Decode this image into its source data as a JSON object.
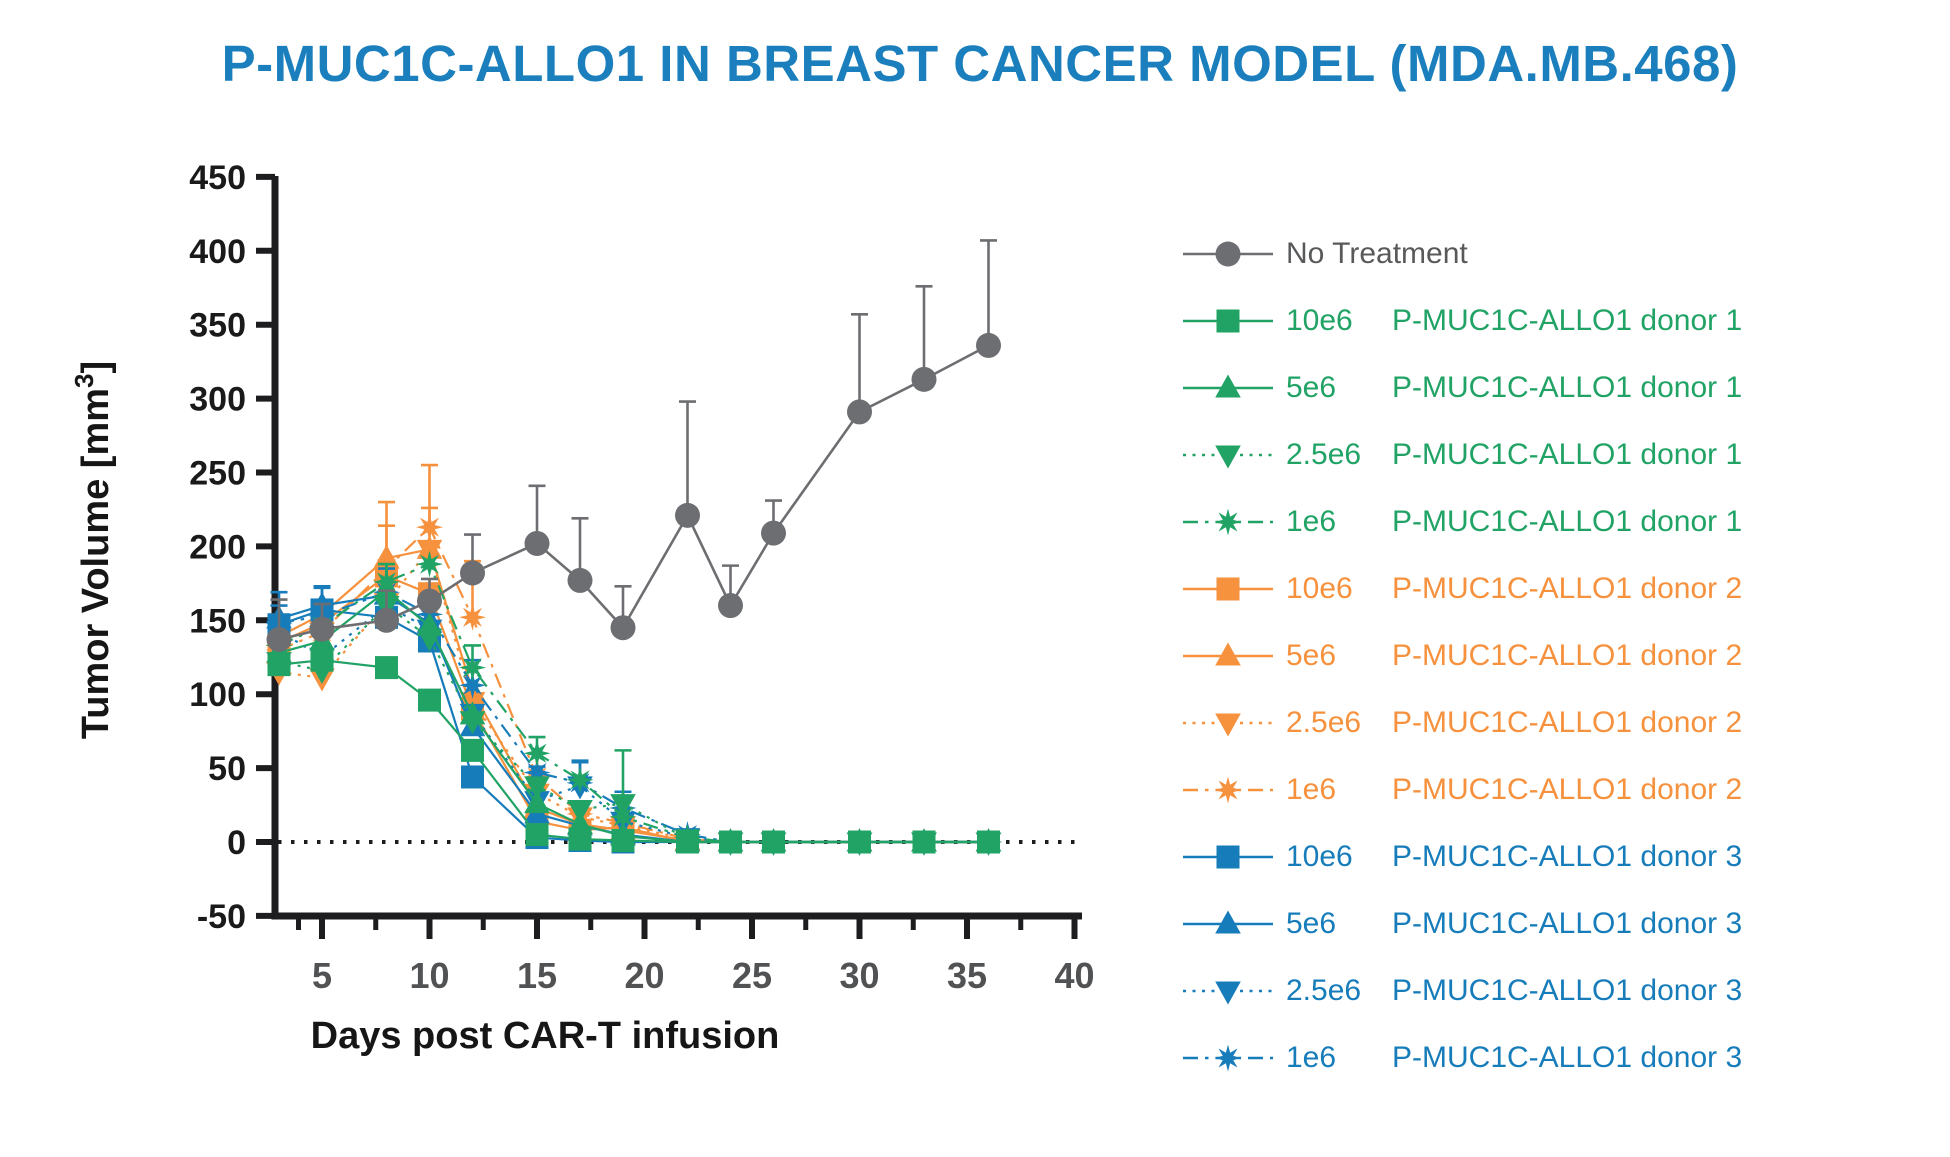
{
  "title": {
    "text": "P-MUC1C-ALLO1 IN BREAST CANCER MODEL (MDA.MB.468)",
    "color": "#1A7FBC"
  },
  "chart_data": {
    "type": "line",
    "x": [
      3,
      5,
      8,
      10,
      12,
      15,
      17,
      19,
      22,
      24,
      26,
      30,
      33,
      36
    ],
    "xlabel": "Days post CAR-T infusion",
    "ylabel": "Tumor Volume [mm³]",
    "ylabel_base": "Tumor Volume [mm",
    "ylabel_sup": "3",
    "ylabel_close": "]",
    "x_ticks": [
      5,
      10,
      15,
      20,
      25,
      30,
      35,
      40
    ],
    "x_minor_ticks": [
      7.5,
      12.5,
      17.5,
      22.5,
      27.5,
      32.5,
      37.5
    ],
    "y_ticks": [
      450,
      400,
      350,
      300,
      250,
      200,
      150,
      100,
      50,
      0,
      -50
    ],
    "xlim": [
      2.8,
      40.4
    ],
    "ylim": [
      -50,
      450
    ],
    "grid": false,
    "baseline": {
      "y": 0,
      "style": "dotted",
      "color": "#1D1D1F"
    },
    "legend_position": "right",
    "axis_color": "#1D1D1F",
    "x_tick_label_color": "#515254",
    "y_tick_label_color": "#1A1A1A",
    "series": [
      {
        "id": "no-treatment",
        "dose": "No Treatment",
        "product": "",
        "color": "#6D6E71",
        "text_color": "#58595B",
        "marker": "circle",
        "line": "solid",
        "values": [
          137,
          144,
          150,
          163,
          182,
          202,
          177,
          145,
          221,
          160,
          209,
          291,
          313,
          336
        ],
        "err_up": [
          27,
          17,
          20,
          15,
          26,
          39,
          42,
          28,
          77,
          27,
          22,
          66,
          63,
          71
        ]
      },
      {
        "id": "10e6-donor1",
        "dose": "10e6",
        "product": "P-MUC1C-ALLO1 donor 1",
        "color": "#21A366",
        "marker": "square",
        "line": "solid",
        "values": [
          120,
          123,
          118,
          96,
          62,
          5,
          2,
          1,
          0,
          0,
          0,
          0,
          0,
          0
        ],
        "err_up": [
          0,
          0,
          0,
          0,
          0,
          0,
          0,
          0,
          0,
          0,
          0,
          0,
          0,
          0
        ]
      },
      {
        "id": "5e6-donor1",
        "dose": "5e6",
        "product": "P-MUC1C-ALLO1 donor 1",
        "color": "#21A366",
        "marker": "triangle-up",
        "line": "solid",
        "values": [
          128,
          136,
          170,
          146,
          86,
          26,
          12,
          4,
          0,
          0,
          0,
          0,
          0,
          0
        ],
        "err_up": [
          14,
          10,
          18,
          0,
          0,
          9,
          0,
          0,
          0,
          0,
          0,
          0,
          0,
          0
        ]
      },
      {
        "id": "2.5e6-donor1",
        "dose": "2.5e6",
        "product": "P-MUC1C-ALLO1 donor 1",
        "color": "#21A366",
        "marker": "triangle-down",
        "line": "dotted",
        "values": [
          122,
          116,
          160,
          138,
          82,
          38,
          22,
          26,
          2,
          0,
          0,
          0,
          0,
          0
        ],
        "err_up": [
          0,
          0,
          0,
          0,
          0,
          0,
          0,
          36,
          0,
          0,
          0,
          0,
          0,
          0
        ]
      },
      {
        "id": "1e6-donor1",
        "dose": "1e6",
        "product": "P-MUC1C-ALLO1 donor 1",
        "color": "#21A366",
        "marker": "star",
        "line": "dashdot",
        "values": [
          133,
          146,
          176,
          188,
          118,
          60,
          42,
          17,
          3,
          0,
          0,
          0,
          0,
          0
        ],
        "err_up": [
          0,
          0,
          12,
          0,
          15,
          11,
          0,
          0,
          0,
          0,
          0,
          0,
          0,
          0
        ]
      },
      {
        "id": "10e6-donor2",
        "dose": "10e6",
        "product": "P-MUC1C-ALLO1 donor 2",
        "color": "#F6913E",
        "marker": "square",
        "line": "solid",
        "values": [
          135,
          148,
          180,
          168,
          90,
          14,
          8,
          10,
          0,
          0,
          0,
          0,
          0,
          0
        ],
        "err_up": [
          10,
          9,
          34,
          0,
          0,
          0,
          0,
          0,
          0,
          0,
          0,
          0,
          0,
          0
        ]
      },
      {
        "id": "5e6-donor2",
        "dose": "5e6",
        "product": "P-MUC1C-ALLO1 donor 2",
        "color": "#F6913E",
        "marker": "triangle-up",
        "line": "solid",
        "values": [
          139,
          154,
          192,
          198,
          102,
          23,
          12,
          8,
          1,
          0,
          0,
          0,
          0,
          0
        ],
        "err_up": [
          0,
          0,
          38,
          28,
          0,
          11,
          0,
          0,
          0,
          0,
          0,
          0,
          0,
          0
        ]
      },
      {
        "id": "2.5e6-donor2",
        "dose": "2.5e6",
        "product": "P-MUC1C-ALLO1 donor 2",
        "color": "#F6913E",
        "marker": "triangle-down",
        "line": "dotted",
        "values": [
          115,
          111,
          162,
          198,
          95,
          33,
          17,
          11,
          2,
          0,
          0,
          0,
          0,
          0
        ],
        "err_up": [
          0,
          0,
          0,
          0,
          0,
          13,
          0,
          0,
          0,
          0,
          0,
          0,
          0,
          0
        ]
      },
      {
        "id": "1e6-donor2",
        "dose": "1e6",
        "product": "P-MUC1C-ALLO1 donor 2",
        "color": "#F6913E",
        "marker": "star",
        "line": "dashdot",
        "values": [
          130,
          142,
          185,
          213,
          152,
          44,
          19,
          13,
          2,
          0,
          0,
          0,
          0,
          0
        ],
        "err_up": [
          0,
          0,
          0,
          42,
          38,
          16,
          0,
          0,
          0,
          0,
          0,
          0,
          0,
          0
        ]
      },
      {
        "id": "10e6-donor3",
        "dose": "10e6",
        "product": "P-MUC1C-ALLO1 donor 3",
        "color": "#177CBA",
        "marker": "square",
        "line": "solid",
        "values": [
          147,
          157,
          152,
          136,
          44,
          3,
          1,
          0,
          0,
          0,
          0,
          0,
          0,
          0
        ],
        "err_up": [
          13,
          15,
          0,
          0,
          0,
          0,
          0,
          0,
          0,
          0,
          0,
          0,
          0,
          0
        ]
      },
      {
        "id": "5e6-donor3",
        "dose": "5e6",
        "product": "P-MUC1C-ALLO1 donor 3",
        "color": "#177CBA",
        "marker": "triangle-up",
        "line": "solid",
        "values": [
          151,
          160,
          167,
          148,
          78,
          19,
          11,
          5,
          0,
          0,
          0,
          0,
          0,
          0
        ],
        "err_up": [
          18,
          13,
          18,
          0,
          0,
          0,
          0,
          0,
          0,
          0,
          0,
          0,
          0,
          0
        ]
      },
      {
        "id": "2.5e6-donor3",
        "dose": "2.5e6",
        "product": "P-MUC1C-ALLO1 donor 3",
        "color": "#177CBA",
        "marker": "triangle-down",
        "line": "dotted",
        "values": [
          143,
          125,
          160,
          144,
          87,
          28,
          38,
          14,
          3,
          0,
          0,
          0,
          0,
          0
        ],
        "err_up": [
          0,
          0,
          0,
          0,
          0,
          23,
          16,
          0,
          0,
          0,
          0,
          0,
          0,
          0
        ]
      },
      {
        "id": "1e6-donor3",
        "dose": "1e6",
        "product": "P-MUC1C-ALLO1 donor 3",
        "color": "#177CBA",
        "marker": "star",
        "line": "dashdot",
        "values": [
          148,
          153,
          169,
          154,
          106,
          47,
          40,
          23,
          5,
          0,
          0,
          0,
          0,
          0
        ],
        "err_up": [
          0,
          0,
          0,
          0,
          17,
          0,
          15,
          11,
          0,
          0,
          0,
          0,
          0,
          0
        ]
      }
    ]
  }
}
